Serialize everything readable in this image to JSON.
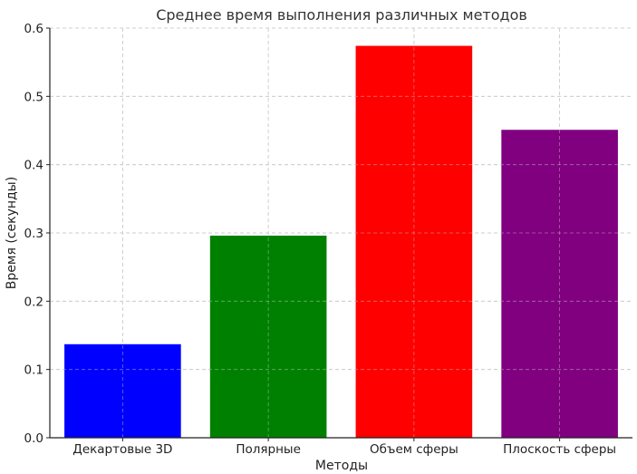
{
  "chart_data": {
    "type": "bar",
    "title": "Среднее время выполнения различных методов",
    "xlabel": "Методы",
    "ylabel": "Время (секунды)",
    "categories": [
      "Декартовые 3D",
      "Полярные",
      "Объем сферы",
      "Плоскость сферы"
    ],
    "values": [
      0.137,
      0.296,
      0.574,
      0.451
    ],
    "colors": [
      "#0000ff",
      "#008000",
      "#ff0000",
      "#800080"
    ],
    "ylim": [
      0,
      0.6
    ],
    "yticks": [
      "0.0",
      "0.1",
      "0.2",
      "0.3",
      "0.4",
      "0.5",
      "0.6"
    ],
    "grid": true
  }
}
